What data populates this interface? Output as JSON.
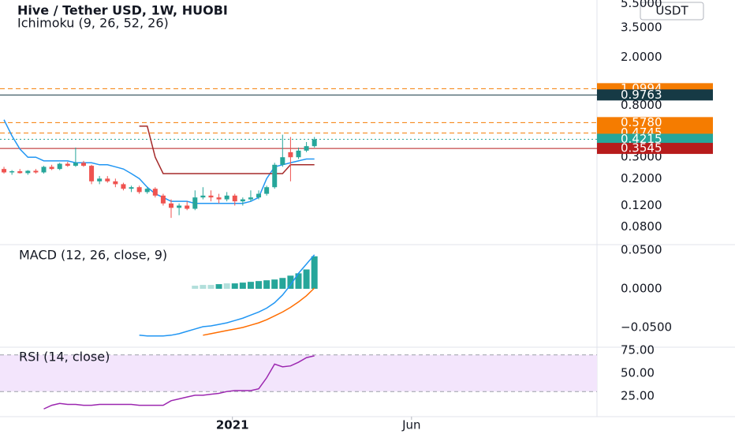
{
  "chart_data": [
    {
      "type": "candlestick",
      "title": "Hive / Tether USD, 1W, HUOBI",
      "subtitle": "Ichimoku (9, 26, 52, 26)",
      "currency": "USDT",
      "x": [
        0,
        1,
        2,
        3,
        4,
        5,
        6,
        7,
        8,
        9,
        10,
        11,
        12,
        13,
        14,
        15,
        16,
        17,
        18,
        19,
        20,
        21,
        22,
        23,
        24,
        25,
        26,
        27,
        28,
        29,
        30,
        31,
        32,
        33,
        34,
        35,
        36,
        37,
        38,
        39
      ],
      "open": [
        0.24,
        0.225,
        0.23,
        0.222,
        0.232,
        0.225,
        0.25,
        0.24,
        0.265,
        0.255,
        0.27,
        0.255,
        0.19,
        0.2,
        0.19,
        0.18,
        0.165,
        0.17,
        0.155,
        0.165,
        0.145,
        0.125,
        0.115,
        0.12,
        0.113,
        0.14,
        0.145,
        0.14,
        0.135,
        0.145,
        0.13,
        0.135,
        0.14,
        0.15,
        0.17,
        0.26,
        0.33,
        0.3,
        0.34,
        0.37
      ],
      "high": [
        0.25,
        0.235,
        0.24,
        0.235,
        0.24,
        0.255,
        0.26,
        0.27,
        0.275,
        0.36,
        0.28,
        0.26,
        0.21,
        0.21,
        0.2,
        0.185,
        0.175,
        0.175,
        0.17,
        0.17,
        0.15,
        0.135,
        0.125,
        0.13,
        0.16,
        0.17,
        0.16,
        0.15,
        0.155,
        0.15,
        0.14,
        0.16,
        0.16,
        0.175,
        0.27,
        0.46,
        0.44,
        0.36,
        0.4,
        0.44
      ],
      "low": [
        0.22,
        0.215,
        0.22,
        0.215,
        0.22,
        0.22,
        0.235,
        0.235,
        0.25,
        0.25,
        0.25,
        0.18,
        0.18,
        0.185,
        0.17,
        0.16,
        0.155,
        0.15,
        0.15,
        0.14,
        0.12,
        0.095,
        0.1,
        0.11,
        0.11,
        0.135,
        0.13,
        0.125,
        0.13,
        0.12,
        0.12,
        0.13,
        0.135,
        0.145,
        0.165,
        0.25,
        0.19,
        0.29,
        0.33,
        0.36
      ],
      "close": [
        0.225,
        0.23,
        0.222,
        0.232,
        0.225,
        0.25,
        0.24,
        0.265,
        0.255,
        0.27,
        0.255,
        0.19,
        0.2,
        0.19,
        0.18,
        0.165,
        0.17,
        0.155,
        0.165,
        0.145,
        0.125,
        0.115,
        0.12,
        0.113,
        0.14,
        0.145,
        0.14,
        0.135,
        0.145,
        0.13,
        0.135,
        0.14,
        0.15,
        0.17,
        0.26,
        0.3,
        0.3,
        0.34,
        0.37,
        0.4215
      ],
      "up_color": "#26a69a",
      "down_color": "#ef5350",
      "lines": [
        {
          "color": "#2196f3",
          "values": [
            0.61,
            0.45,
            0.35,
            0.3,
            0.3,
            0.28,
            0.28,
            0.28,
            0.28,
            0.27,
            0.27,
            0.27,
            0.26,
            0.26,
            0.25,
            0.24,
            0.22,
            0.2,
            0.17,
            0.15,
            0.14,
            0.13,
            0.13,
            0.13,
            0.125,
            0.125,
            0.125,
            0.125,
            0.125,
            0.125,
            0.125,
            0.13,
            0.14,
            0.2,
            0.25,
            0.26,
            0.27,
            0.28,
            0.29,
            0.29
          ]
        },
        {
          "color": "#a52a2a",
          "values": [
            null,
            null,
            null,
            null,
            null,
            null,
            null,
            null,
            null,
            null,
            null,
            null,
            null,
            null,
            null,
            null,
            null,
            0.54,
            0.54,
            0.3,
            0.22,
            0.22,
            0.22,
            0.22,
            0.22,
            0.22,
            0.22,
            0.22,
            0.22,
            0.22,
            0.22,
            0.22,
            0.22,
            0.22,
            0.22,
            0.22,
            0.26,
            0.26,
            0.26,
            0.26
          ]
        }
      ],
      "price_lines": [
        {
          "value": 1.0994,
          "label": "1.0994",
          "color": "#f57c00",
          "style": "dashed"
        },
        {
          "value": 0.9763,
          "label": "0.9763",
          "color": "#163a45",
          "style": "solid"
        },
        {
          "value": 0.578,
          "label": "0.5780",
          "color": "#f57c00",
          "style": "dashed"
        },
        {
          "value": 0.4745,
          "label": "0.4745",
          "color": "#f57c00",
          "style": "dashed"
        },
        {
          "value": 0.4215,
          "label": "0.4215",
          "color": "#26a69a",
          "style": "dotted"
        },
        {
          "value": 0.3545,
          "label": "0.3545",
          "color": "#b71c1c",
          "style": "solid"
        }
      ],
      "log_scale": true,
      "xlim": [
        -0.5,
        74.5
      ],
      "ylim": [
        0.059,
        5.9
      ],
      "yticks": [
        {
          "value": 5.5,
          "label": "5.5000"
        },
        {
          "value": 3.5,
          "label": "3.5000"
        },
        {
          "value": 2,
          "label": "2.0000"
        },
        {
          "value": 0.8,
          "label": "0.8000"
        },
        {
          "value": 0.3,
          "label": "0.3000"
        },
        {
          "value": 0.2,
          "label": "0.2000"
        },
        {
          "value": 0.12,
          "label": "0.1200"
        },
        {
          "value": 0.08,
          "label": "0.0800"
        }
      ]
    },
    {
      "type": "macd",
      "title": "MACD (12, 26, close, 9)",
      "x": [
        0,
        1,
        2,
        3,
        4,
        5,
        6,
        7,
        8,
        9,
        10,
        11,
        12,
        13,
        14,
        15,
        16,
        17,
        18,
        19,
        20,
        21,
        22,
        23,
        24,
        25,
        26,
        27,
        28,
        29,
        30,
        31,
        32,
        33,
        34,
        35,
        36,
        37,
        38,
        39
      ],
      "histogram": {
        "values": [
          null,
          null,
          null,
          null,
          null,
          null,
          null,
          null,
          null,
          null,
          null,
          null,
          null,
          null,
          null,
          null,
          null,
          null,
          null,
          null,
          null,
          null,
          null,
          null,
          0.004,
          0.005,
          0.005,
          0.006,
          0.007,
          0.007,
          0.008,
          0.009,
          0.01,
          0.011,
          0.012,
          0.014,
          0.017,
          0.02,
          0.025,
          0.042
        ],
        "colors": [
          null,
          null,
          null,
          null,
          null,
          null,
          null,
          null,
          null,
          null,
          null,
          null,
          null,
          null,
          null,
          null,
          null,
          null,
          null,
          null,
          null,
          null,
          null,
          null,
          "#b2dfdb",
          "#b2dfdb",
          "#b2dfdb",
          "#26a69a",
          "#b2dfdb",
          "#26a69a",
          "#26a69a",
          "#26a69a",
          "#26a69a",
          "#26a69a",
          "#26a69a",
          "#26a69a",
          "#26a69a",
          "#26a69a",
          "#26a69a",
          "#26a69a"
        ]
      },
      "series": [
        {
          "color": "#2196f3",
          "values": [
            null,
            null,
            null,
            null,
            null,
            null,
            null,
            null,
            null,
            null,
            null,
            null,
            null,
            null,
            null,
            null,
            null,
            -0.06,
            -0.061,
            -0.061,
            -0.061,
            -0.06,
            -0.058,
            -0.055,
            -0.052,
            -0.049,
            -0.048,
            -0.046,
            -0.044,
            -0.041,
            -0.038,
            -0.034,
            -0.03,
            -0.025,
            -0.018,
            -0.008,
            0.005,
            0.02,
            0.032,
            0.044
          ]
        },
        {
          "color": "#ff6d00",
          "values": [
            null,
            null,
            null,
            null,
            null,
            null,
            null,
            null,
            null,
            null,
            null,
            null,
            null,
            null,
            null,
            null,
            null,
            null,
            null,
            null,
            null,
            null,
            null,
            null,
            null,
            -0.06,
            -0.058,
            -0.056,
            -0.054,
            -0.052,
            -0.05,
            -0.047,
            -0.044,
            -0.04,
            -0.035,
            -0.03,
            -0.024,
            -0.017,
            -0.009,
            0.001
          ]
        }
      ],
      "xlim": [
        -0.5,
        74.5
      ],
      "ylim": [
        -0.0755,
        0.0571
      ],
      "yticks": [
        {
          "value": 0.05,
          "label": "0.0500"
        },
        {
          "value": 0,
          "label": "0.0000"
        },
        {
          "value": -0.05,
          "label": "−0.0500"
        }
      ]
    },
    {
      "type": "rsi",
      "title": "RSI (14, close)",
      "x": [
        0,
        1,
        2,
        3,
        4,
        5,
        6,
        7,
        8,
        9,
        10,
        11,
        12,
        13,
        14,
        15,
        16,
        17,
        18,
        19,
        20,
        21,
        22,
        23,
        24,
        25,
        26,
        27,
        28,
        29,
        30,
        31,
        32,
        33,
        34,
        35,
        36,
        37,
        38,
        39
      ],
      "series": [
        {
          "color": "#9c27b0",
          "values": [
            null,
            null,
            null,
            null,
            null,
            11,
            15,
            17,
            16,
            16,
            15,
            15,
            16,
            16,
            16,
            16,
            16,
            15,
            15,
            15,
            15,
            20,
            22,
            24,
            26,
            26,
            27,
            28,
            30,
            31,
            31,
            31,
            33,
            45,
            60,
            57,
            58,
            62,
            67,
            69
          ]
        }
      ],
      "band": [
        30,
        70
      ],
      "band_color": "#f3e5fc",
      "xlim": [
        -0.5,
        74.5
      ],
      "ylim": [
        2.6,
        78.4
      ],
      "yticks": [
        {
          "value": 75,
          "label": "75.00"
        },
        {
          "value": 50,
          "label": "50.00"
        },
        {
          "value": 25,
          "label": "25.00"
        }
      ],
      "xticks": [
        {
          "value": 28.7,
          "label": "2021"
        },
        {
          "value": 51.2,
          "label": "Jun"
        }
      ]
    }
  ]
}
